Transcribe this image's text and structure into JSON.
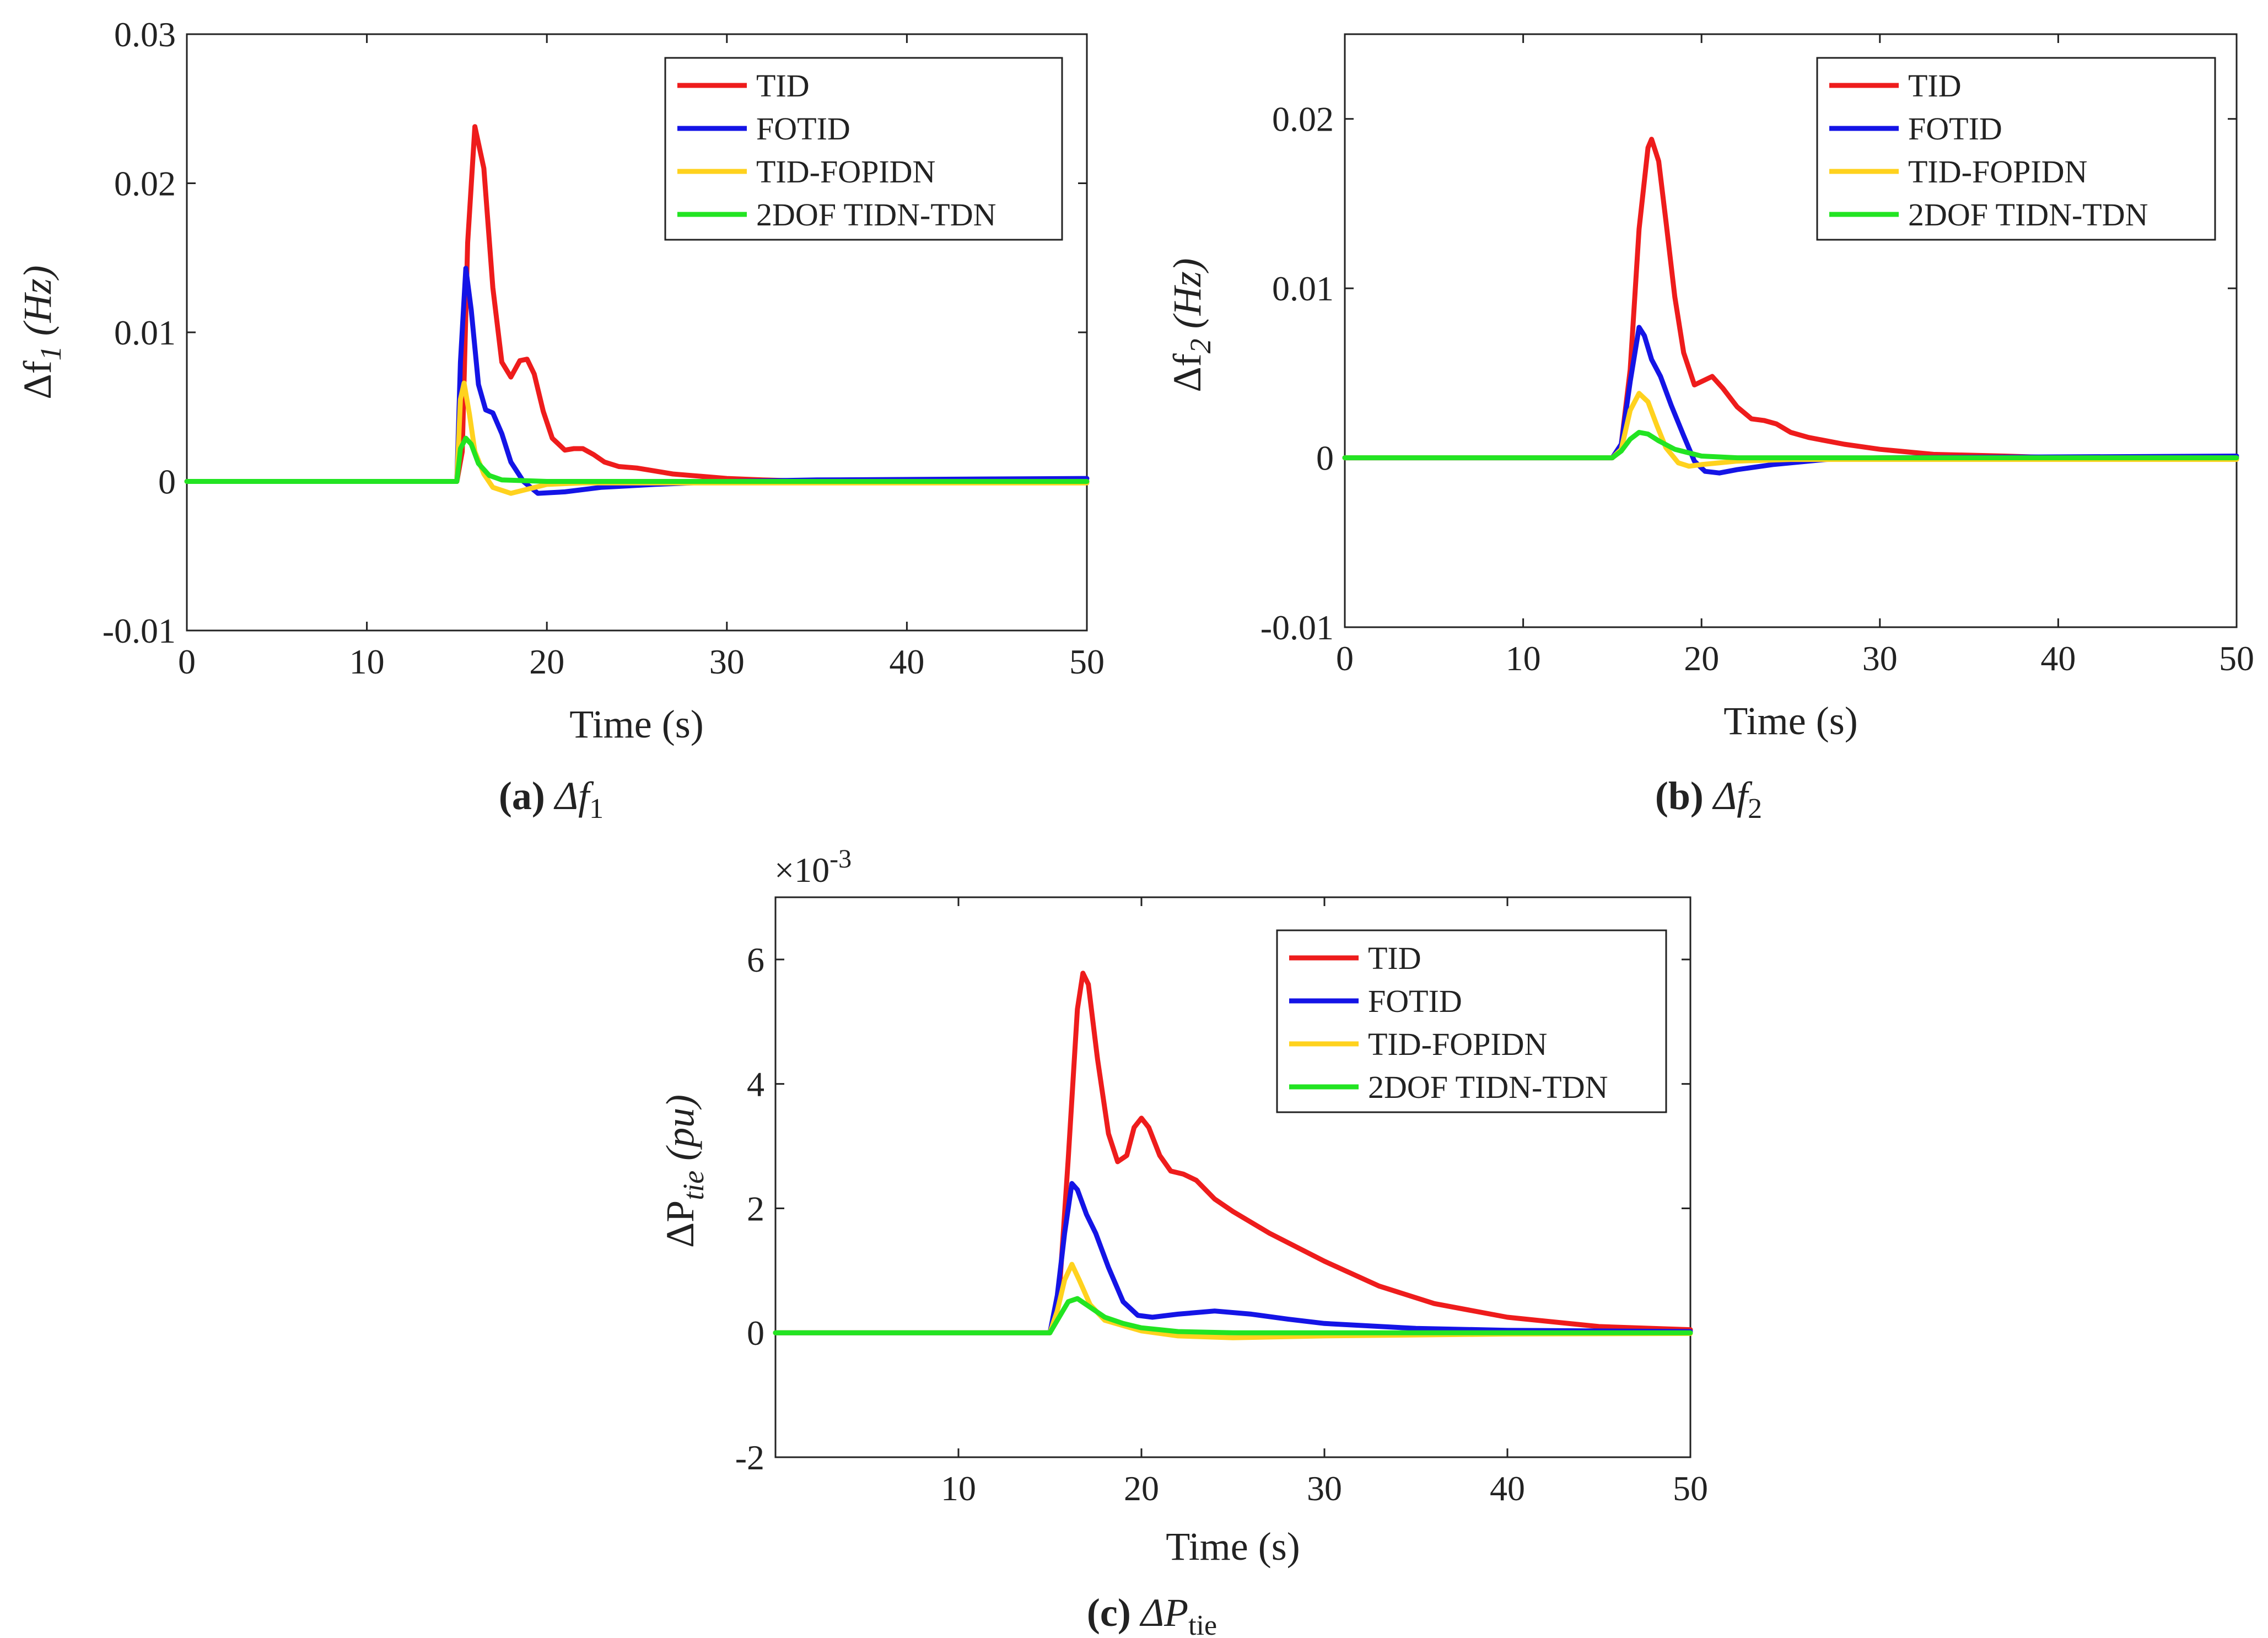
{
  "series_meta": [
    {
      "name": "TID",
      "color": "#ee1c1c"
    },
    {
      "name": "FOTID",
      "color": "#1414e6"
    },
    {
      "name": "TID-FOPIDN",
      "color": "#ffd21e"
    },
    {
      "name": "2DOF TIDN-TDN",
      "color": "#22e422"
    }
  ],
  "chart_data": [
    {
      "id": "a",
      "type": "line",
      "caption_label": "(a)",
      "caption_sym": "Δf",
      "caption_sub": "1",
      "ylabel_main": "Δf",
      "ylabel_sub": "1",
      "ylabel_unit": "(Hz)",
      "xlabel": "Time (s)",
      "xlim": [
        0,
        50
      ],
      "ylim": [
        -0.01,
        0.03
      ],
      "xticks": [
        0,
        10,
        20,
        30,
        40,
        50
      ],
      "yticks": [
        -0.01,
        0,
        0.01,
        0.02,
        0.03
      ],
      "ytick_labels": [
        "-0.01",
        "0",
        "0.01",
        "0.02",
        "0.03"
      ],
      "legend_position": "top-right",
      "series": [
        {
          "name": "TID",
          "points": [
            [
              0,
              0
            ],
            [
              15,
              0
            ],
            [
              15.3,
              0.002
            ],
            [
              15.6,
              0.016
            ],
            [
              16,
              0.0238
            ],
            [
              16.5,
              0.021
            ],
            [
              17,
              0.013
            ],
            [
              17.5,
              0.008
            ],
            [
              18,
              0.007
            ],
            [
              18.5,
              0.0081
            ],
            [
              18.9,
              0.0082
            ],
            [
              19.3,
              0.0072
            ],
            [
              19.8,
              0.0047
            ],
            [
              20.3,
              0.0029
            ],
            [
              21,
              0.0021
            ],
            [
              21.5,
              0.0022
            ],
            [
              22,
              0.0022
            ],
            [
              22.6,
              0.0018
            ],
            [
              23.2,
              0.0013
            ],
            [
              24,
              0.001
            ],
            [
              25,
              0.0009
            ],
            [
              26,
              0.0007
            ],
            [
              27,
              0.0005
            ],
            [
              28,
              0.0004
            ],
            [
              30,
              0.0002
            ],
            [
              32,
              0.0001
            ],
            [
              35,
              0
            ],
            [
              50,
              0
            ]
          ]
        },
        {
          "name": "FOTID",
          "points": [
            [
              0,
              0
            ],
            [
              15,
              0
            ],
            [
              15.2,
              0.008
            ],
            [
              15.5,
              0.0143
            ],
            [
              15.8,
              0.0115
            ],
            [
              16.2,
              0.0065
            ],
            [
              16.6,
              0.0048
            ],
            [
              17,
              0.0046
            ],
            [
              17.5,
              0.0032
            ],
            [
              18,
              0.0013
            ],
            [
              18.7,
              0
            ],
            [
              19.5,
              -0.0008
            ],
            [
              21,
              -0.0007
            ],
            [
              23,
              -0.0004
            ],
            [
              26,
              -0.0002
            ],
            [
              30,
              0
            ],
            [
              35,
              0.0001
            ],
            [
              50,
              0.0002
            ]
          ]
        },
        {
          "name": "TID-FOPIDN",
          "points": [
            [
              0,
              0
            ],
            [
              15,
              0
            ],
            [
              15.2,
              0.0055
            ],
            [
              15.4,
              0.0066
            ],
            [
              15.7,
              0.0045
            ],
            [
              16,
              0.002
            ],
            [
              16.5,
              0.0005
            ],
            [
              17,
              -0.0004
            ],
            [
              18,
              -0.0008
            ],
            [
              19,
              -0.0005
            ],
            [
              20,
              -0.0002
            ],
            [
              22,
              -0.0001
            ],
            [
              30,
              -0.0001
            ],
            [
              50,
              -0.0001
            ]
          ]
        },
        {
          "name": "2DOF TIDN-TDN",
          "points": [
            [
              0,
              0
            ],
            [
              15,
              0
            ],
            [
              15.2,
              0.0022
            ],
            [
              15.5,
              0.0029
            ],
            [
              15.8,
              0.0025
            ],
            [
              16.2,
              0.0012
            ],
            [
              16.8,
              0.0004
            ],
            [
              17.5,
              0.0001
            ],
            [
              20,
              0
            ],
            [
              50,
              0
            ]
          ]
        }
      ]
    },
    {
      "id": "b",
      "type": "line",
      "caption_label": "(b)",
      "caption_sym": "Δf",
      "caption_sub": "2",
      "ylabel_main": "Δf",
      "ylabel_sub": "2",
      "ylabel_unit": "(Hz)",
      "xlabel": "Time (s)",
      "xlim": [
        0,
        50
      ],
      "ylim": [
        -0.01,
        0.025
      ],
      "xticks": [
        0,
        10,
        20,
        30,
        40,
        50
      ],
      "yticks": [
        -0.01,
        0,
        0.01,
        0.02
      ],
      "ytick_labels": [
        "-0.01",
        "0",
        "0.01",
        "0.02"
      ],
      "legend_position": "top-right",
      "series": [
        {
          "name": "TID",
          "points": [
            [
              0,
              0
            ],
            [
              15,
              0
            ],
            [
              15.5,
              0.0008
            ],
            [
              16,
              0.0052
            ],
            [
              16.5,
              0.0135
            ],
            [
              17,
              0.0183
            ],
            [
              17.2,
              0.0188
            ],
            [
              17.6,
              0.0175
            ],
            [
              18,
              0.014
            ],
            [
              18.5,
              0.0095
            ],
            [
              19,
              0.0062
            ],
            [
              19.6,
              0.0043
            ],
            [
              20.2,
              0.0046
            ],
            [
              20.6,
              0.0048
            ],
            [
              21.2,
              0.0041
            ],
            [
              22,
              0.003
            ],
            [
              22.8,
              0.0023
            ],
            [
              23.5,
              0.0022
            ],
            [
              24.2,
              0.002
            ],
            [
              25,
              0.0015
            ],
            [
              26,
              0.0012
            ],
            [
              28,
              0.0008
            ],
            [
              30,
              0.0005
            ],
            [
              33,
              0.0002
            ],
            [
              37,
              0.0001
            ],
            [
              40,
              0
            ],
            [
              50,
              0
            ]
          ]
        },
        {
          "name": "FOTID",
          "points": [
            [
              0,
              0
            ],
            [
              15,
              0
            ],
            [
              15.5,
              0.0008
            ],
            [
              16,
              0.0045
            ],
            [
              16.5,
              0.0077
            ],
            [
              16.8,
              0.0072
            ],
            [
              17.2,
              0.0058
            ],
            [
              17.7,
              0.0048
            ],
            [
              18.3,
              0.0031
            ],
            [
              19,
              0.0013
            ],
            [
              19.6,
              -0.0002
            ],
            [
              20.2,
              -0.0008
            ],
            [
              21,
              -0.0009
            ],
            [
              22,
              -0.0007
            ],
            [
              24,
              -0.0004
            ],
            [
              27,
              -0.0001
            ],
            [
              30,
              0
            ],
            [
              50,
              0.0001
            ]
          ]
        },
        {
          "name": "TID-FOPIDN",
          "points": [
            [
              0,
              0
            ],
            [
              15,
              0
            ],
            [
              15.5,
              0.0005
            ],
            [
              16,
              0.0028
            ],
            [
              16.5,
              0.0038
            ],
            [
              17,
              0.0033
            ],
            [
              17.5,
              0.0019
            ],
            [
              18,
              0.0006
            ],
            [
              18.7,
              -0.0003
            ],
            [
              19.3,
              -0.0005
            ],
            [
              20,
              -0.0004
            ],
            [
              22,
              -0.0002
            ],
            [
              25,
              -0.0001
            ],
            [
              50,
              -0.0001
            ]
          ]
        },
        {
          "name": "2DOF TIDN-TDN",
          "points": [
            [
              0,
              0
            ],
            [
              15,
              0
            ],
            [
              15.5,
              0.0004
            ],
            [
              16,
              0.0011
            ],
            [
              16.5,
              0.0015
            ],
            [
              17,
              0.0014
            ],
            [
              17.6,
              0.001
            ],
            [
              18.5,
              0.0005
            ],
            [
              20,
              0.0001
            ],
            [
              22,
              0
            ],
            [
              50,
              0
            ]
          ]
        }
      ]
    },
    {
      "id": "c",
      "type": "line",
      "caption_label": "(c)",
      "caption_sym": "ΔP",
      "caption_sub": "tie",
      "ylabel_main": "ΔP",
      "ylabel_sub": "tie",
      "ylabel_unit": "(pu)",
      "xlabel": "Time (s)",
      "exponent_label": "×10",
      "exponent_power": "-3",
      "xlim": [
        0,
        50
      ],
      "ylim": [
        -2,
        7
      ],
      "xticks": [
        10,
        20,
        30,
        40,
        50
      ],
      "yticks": [
        -2,
        0,
        2,
        4,
        6
      ],
      "ytick_labels": [
        "-2",
        "0",
        "2",
        "4",
        "6"
      ],
      "legend_position": "top-right",
      "series": [
        {
          "name": "TID",
          "points": [
            [
              0,
              0
            ],
            [
              15,
              0
            ],
            [
              15.5,
              0.6
            ],
            [
              16,
              2.8
            ],
            [
              16.5,
              5.2
            ],
            [
              16.8,
              5.78
            ],
            [
              17.1,
              5.6
            ],
            [
              17.6,
              4.4
            ],
            [
              18.2,
              3.2
            ],
            [
              18.7,
              2.75
            ],
            [
              19.2,
              2.85
            ],
            [
              19.6,
              3.3
            ],
            [
              20,
              3.45
            ],
            [
              20.4,
              3.3
            ],
            [
              21,
              2.85
            ],
            [
              21.6,
              2.6
            ],
            [
              22.3,
              2.55
            ],
            [
              23,
              2.45
            ],
            [
              24,
              2.15
            ],
            [
              25,
              1.95
            ],
            [
              27,
              1.6
            ],
            [
              30,
              1.15
            ],
            [
              33,
              0.75
            ],
            [
              36,
              0.47
            ],
            [
              40,
              0.25
            ],
            [
              45,
              0.1
            ],
            [
              50,
              0.05
            ]
          ]
        },
        {
          "name": "FOTID",
          "points": [
            [
              0,
              0
            ],
            [
              15,
              0
            ],
            [
              15.4,
              0.6
            ],
            [
              15.8,
              1.6
            ],
            [
              16.2,
              2.4
            ],
            [
              16.5,
              2.3
            ],
            [
              17,
              1.9
            ],
            [
              17.5,
              1.6
            ],
            [
              18.2,
              1.05
            ],
            [
              19,
              0.5
            ],
            [
              19.8,
              0.28
            ],
            [
              20.6,
              0.25
            ],
            [
              22,
              0.3
            ],
            [
              24,
              0.35
            ],
            [
              26,
              0.3
            ],
            [
              28,
              0.22
            ],
            [
              30,
              0.15
            ],
            [
              35,
              0.07
            ],
            [
              40,
              0.04
            ],
            [
              50,
              0.02
            ]
          ]
        },
        {
          "name": "TID-FOPIDN",
          "points": [
            [
              0,
              0
            ],
            [
              15,
              0
            ],
            [
              15.4,
              0.35
            ],
            [
              15.8,
              0.85
            ],
            [
              16.2,
              1.1
            ],
            [
              16.6,
              0.85
            ],
            [
              17.2,
              0.45
            ],
            [
              18,
              0.2
            ],
            [
              20,
              0.03
            ],
            [
              22,
              -0.05
            ],
            [
              25,
              -0.08
            ],
            [
              30,
              -0.05
            ],
            [
              40,
              -0.02
            ],
            [
              50,
              -0.01
            ]
          ]
        },
        {
          "name": "2DOF TIDN-TDN",
          "points": [
            [
              0,
              0
            ],
            [
              15,
              0
            ],
            [
              15.5,
              0.25
            ],
            [
              16,
              0.5
            ],
            [
              16.5,
              0.55
            ],
            [
              17,
              0.45
            ],
            [
              18,
              0.25
            ],
            [
              19,
              0.15
            ],
            [
              20,
              0.08
            ],
            [
              22,
              0.02
            ],
            [
              25,
              0
            ],
            [
              50,
              0
            ]
          ]
        }
      ]
    }
  ]
}
